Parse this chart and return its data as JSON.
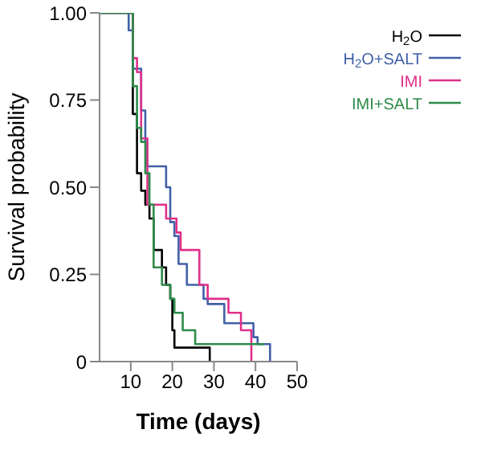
{
  "chart_data": {
    "type": "step",
    "xlabel": "Time (days)",
    "ylabel": "Survival probability",
    "xlim": [
      2.5,
      50
    ],
    "xticks": [
      10,
      20,
      30,
      40,
      50
    ],
    "ylim": [
      0,
      1
    ],
    "yticks": [
      0,
      0.25,
      {
        "value": 0.5,
        "label": "0.50"
      },
      {
        "value": 0.75,
        "label": "0.75"
      },
      {
        "value": 1,
        "label": "1.00"
      }
    ],
    "grid": false,
    "legend": "top right",
    "marker": "none",
    "line_style": "solid",
    "series": [
      {
        "name": "H$_{2}$O",
        "color": "#000000",
        "x": [
          2.5,
          10.5,
          11.5,
          12.5,
          13.5,
          14.5,
          15.5,
          17.5,
          18.5,
          19.5,
          20,
          20.5,
          29
        ],
        "values": [
          1,
          0.71,
          0.54,
          0.49,
          0.45,
          0.41,
          0.32,
          0.27,
          0.22,
          0.18,
          0.09,
          0.04,
          0
        ]
      },
      {
        "name": "H$_{2}$O+SALT",
        "color": "#4060a8",
        "x": [
          2.5,
          9.5,
          10.5,
          12.5,
          13.5,
          14,
          18.5,
          19.5,
          20.5,
          21.5,
          23.5,
          27.5,
          28.5,
          32.5,
          39.5,
          40.5,
          43.5
        ],
        "values": [
          1,
          0.95,
          0.84,
          0.72,
          0.63,
          0.56,
          0.5,
          0.4,
          0.36,
          0.28,
          0.22,
          0.18,
          0.165,
          0.11,
          0.07,
          0.05,
          0
        ]
      },
      {
        "name": "IMI",
        "color": "#e0308a",
        "x": [
          2.5,
          10.5,
          11.5,
          12.5,
          14,
          18.5,
          21,
          22,
          26.5,
          28.5,
          33.5,
          36.5,
          39
        ],
        "values": [
          1,
          0.87,
          0.83,
          0.64,
          0.45,
          0.41,
          0.37,
          0.32,
          0.22,
          0.18,
          0.14,
          0.09,
          0
        ]
      },
      {
        "name": "IMI+SALT",
        "color": "#2e8b4a",
        "x": [
          2.5,
          10.5,
          11.5,
          12.5,
          13.5,
          14.5,
          15.5,
          17.5,
          19.5,
          20.5,
          22.5,
          25.5,
          42
        ],
        "values": [
          1,
          0.79,
          0.67,
          0.63,
          0.54,
          0.45,
          0.27,
          0.22,
          0.18,
          0.14,
          0.09,
          0.05,
          0.05
        ]
      }
    ]
  }
}
